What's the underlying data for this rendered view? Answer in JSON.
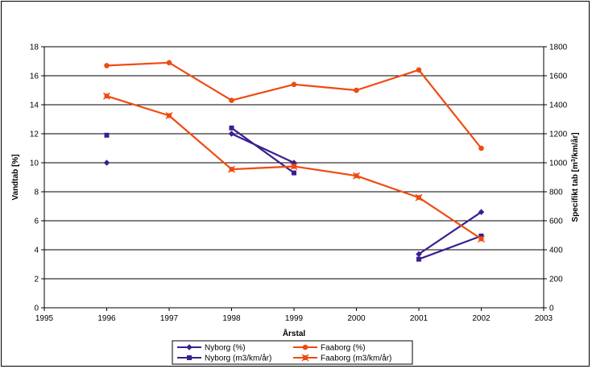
{
  "chart_data": {
    "type": "line",
    "xlabel": "Årstal",
    "ylabel": "Vandtab [%]",
    "y2label_main": "Specifikt tab [m",
    "y2label_sup": "3",
    "y2label_end": "/km/år]",
    "xlim": [
      1995,
      2003
    ],
    "ylim": [
      0,
      18
    ],
    "y2lim": [
      0,
      1800
    ],
    "grid": true,
    "legend_placement": "bottom",
    "x_ticks": [
      "1995",
      "1996",
      "1997",
      "1998",
      "1999",
      "2000",
      "2001",
      "2002",
      "2003"
    ],
    "y_ticks": [
      "0",
      "2",
      "4",
      "6",
      "8",
      "10",
      "12",
      "14",
      "16",
      "18"
    ],
    "y2_ticks": [
      "0",
      "200",
      "400",
      "600",
      "800",
      "1000",
      "1200",
      "1400",
      "1600",
      "1800"
    ],
    "series": [
      {
        "name": "Nyborg (%)",
        "axis": "left",
        "color": "#3b1f8f",
        "marker": "diamond",
        "segments": [
          [
            [
              1996,
              10.0
            ]
          ],
          [
            [
              1998,
              12.0
            ],
            [
              1999,
              10.0
            ]
          ],
          [
            [
              2001,
              3.7
            ],
            [
              2002,
              6.6
            ]
          ]
        ]
      },
      {
        "name": "Nyborg (m3/km/år)",
        "axis": "right",
        "color": "#3b1f8f",
        "marker": "square",
        "segments": [
          [
            [
              1996,
              1190
            ]
          ],
          [
            [
              1998,
              1240
            ],
            [
              1999,
              930
            ]
          ],
          [
            [
              2001,
              335
            ],
            [
              2002,
              495
            ]
          ]
        ]
      },
      {
        "name": "Faaborg (%)",
        "axis": "left",
        "color": "#f04a10",
        "marker": "circle",
        "segments": [
          [
            [
              1996,
              16.7
            ],
            [
              1997,
              16.9
            ],
            [
              1998,
              14.3
            ],
            [
              1999,
              15.4
            ],
            [
              2000,
              15.0
            ],
            [
              2001,
              16.4
            ],
            [
              2002,
              11.0
            ]
          ]
        ]
      },
      {
        "name": "Faaborg (m3/km/år)",
        "axis": "right",
        "color": "#f04a10",
        "marker": "asterisk",
        "segments": [
          [
            [
              1996,
              1460
            ],
            [
              1997,
              1325
            ],
            [
              1998,
              955
            ],
            [
              1999,
              975
            ],
            [
              2000,
              910
            ],
            [
              2001,
              760
            ],
            [
              2002,
              475
            ]
          ]
        ]
      }
    ]
  }
}
